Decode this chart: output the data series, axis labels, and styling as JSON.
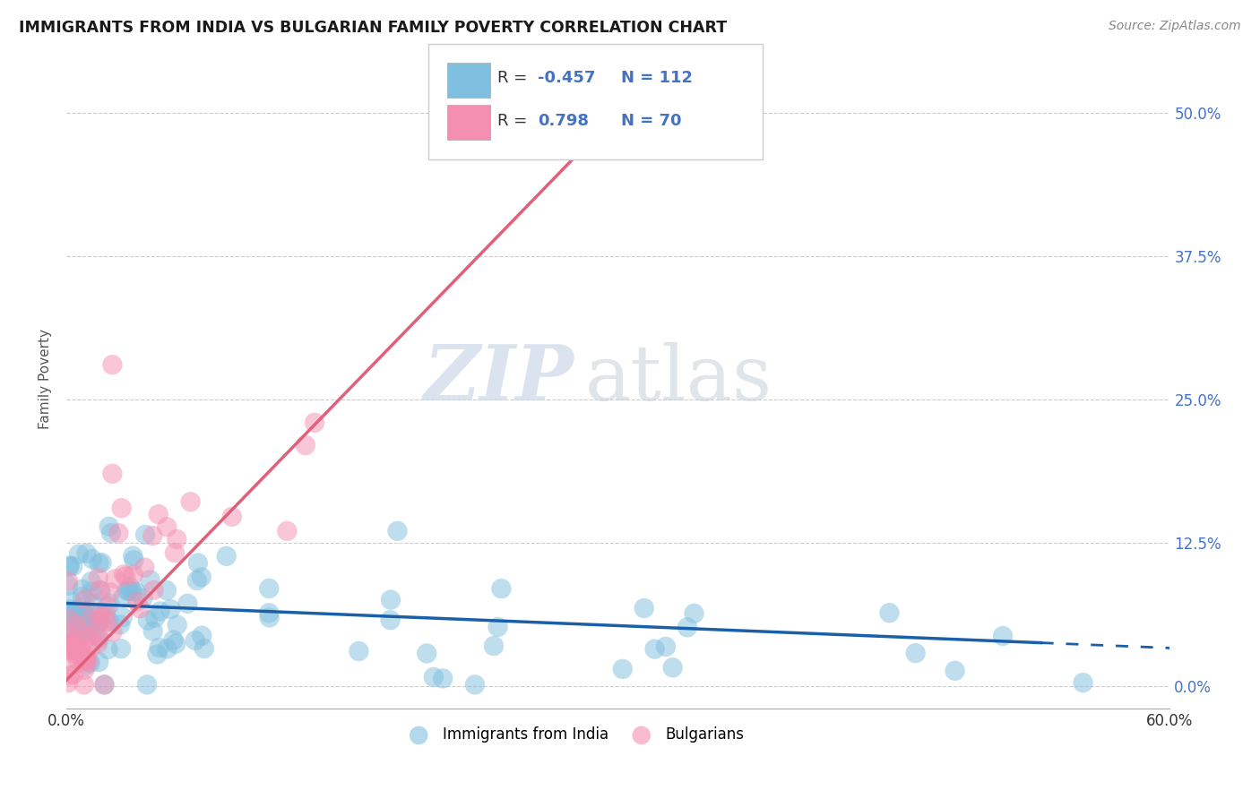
{
  "title": "IMMIGRANTS FROM INDIA VS BULGARIAN FAMILY POVERTY CORRELATION CHART",
  "source": "Source: ZipAtlas.com",
  "ylabel": "Family Poverty",
  "ytick_labels": [
    "0.0%",
    "12.5%",
    "25.0%",
    "37.5%",
    "50.0%"
  ],
  "ytick_values": [
    0.0,
    0.125,
    0.25,
    0.375,
    0.5
  ],
  "xlim": [
    0.0,
    0.6
  ],
  "ylim": [
    -0.02,
    0.555
  ],
  "color_india": "#7fbfdf",
  "color_bulgaria": "#f48fb1",
  "color_line_india": "#1a5fa8",
  "color_line_bulgaria": "#e0607a",
  "watermark_zip": "ZIP",
  "watermark_atlas": "atlas"
}
